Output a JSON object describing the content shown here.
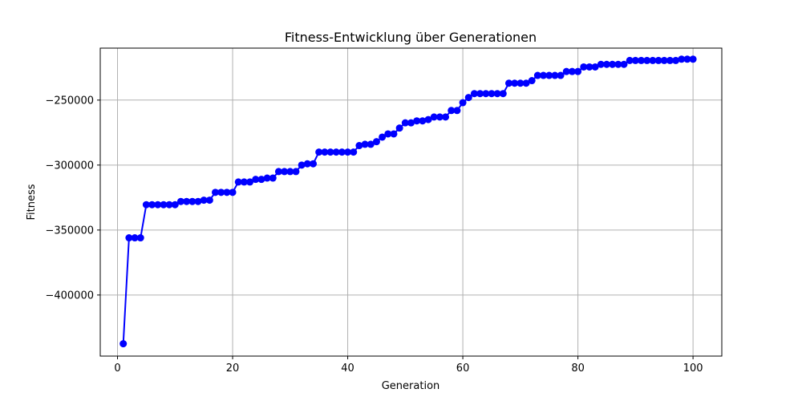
{
  "chart_data": {
    "type": "line",
    "title": "Fitness-Entwicklung über Generationen",
    "xlabel": "Generation",
    "ylabel": "Fitness",
    "xlim": [
      -3,
      105
    ],
    "ylim": [
      -447000,
      -210000
    ],
    "xticks": [
      0,
      20,
      40,
      60,
      80,
      100
    ],
    "yticks": [
      -400000,
      -350000,
      -300000,
      -250000
    ],
    "xtick_labels": [
      "0",
      "20",
      "40",
      "60",
      "80",
      "100"
    ],
    "ytick_labels": [
      "−400000",
      "−350000",
      "−300000",
      "−250000"
    ],
    "grid": true,
    "legend": "none",
    "colors": {
      "line": "#0000ff",
      "marker": "#0000ff",
      "grid": "#b0b0b0",
      "axes": "#000000"
    },
    "series": [
      {
        "x": [
          1,
          2,
          3,
          4,
          5,
          6,
          7,
          8,
          9,
          10,
          11,
          12,
          13,
          14,
          15,
          16,
          17,
          18,
          19,
          20,
          21,
          22,
          23,
          24,
          25,
          26,
          27,
          28,
          29,
          30,
          31,
          32,
          33,
          34,
          35,
          36,
          37,
          38,
          39,
          40,
          41,
          42,
          43,
          44,
          45,
          46,
          47,
          48,
          49,
          50,
          51,
          52,
          53,
          54,
          55,
          56,
          57,
          58,
          59,
          60,
          61,
          62,
          63,
          64,
          65,
          66,
          67,
          68,
          69,
          70,
          71,
          72,
          73,
          74,
          75,
          76,
          77,
          78,
          79,
          80,
          81,
          82,
          83,
          84,
          85,
          86,
          87,
          88,
          89,
          90,
          91,
          92,
          93,
          94,
          95,
          96,
          97,
          98,
          99,
          100
        ],
        "y": [
          -437500,
          -356000,
          -356000,
          -356000,
          -330500,
          -330500,
          -330500,
          -330500,
          -330500,
          -330500,
          -328000,
          -328000,
          -328000,
          -328000,
          -327000,
          -327000,
          -321000,
          -321000,
          -321000,
          -321000,
          -313000,
          -313000,
          -313000,
          -311000,
          -311000,
          -310000,
          -310000,
          -305000,
          -305000,
          -305000,
          -305000,
          -300000,
          -299000,
          -299000,
          -290000,
          -290000,
          -290000,
          -290000,
          -290000,
          -290000,
          -290000,
          -285000,
          -284000,
          -284000,
          -282000,
          -278500,
          -276000,
          -276000,
          -271500,
          -267500,
          -267500,
          -266000,
          -266000,
          -265000,
          -263000,
          -263000,
          -263000,
          -258000,
          -258000,
          -252000,
          -248000,
          -245000,
          -245000,
          -245000,
          -245000,
          -245000,
          -245000,
          -237000,
          -237000,
          -237000,
          -237000,
          -235000,
          -231000,
          -231000,
          -231000,
          -231000,
          -231000,
          -228000,
          -228000,
          -228000,
          -224500,
          -224500,
          -224500,
          -222500,
          -222500,
          -222500,
          -222500,
          -222500,
          -219500,
          -219500,
          -219500,
          -219500,
          -219500,
          -219500,
          -219500,
          -219500,
          -219500,
          -218500,
          -218500,
          -218500
        ]
      }
    ]
  }
}
